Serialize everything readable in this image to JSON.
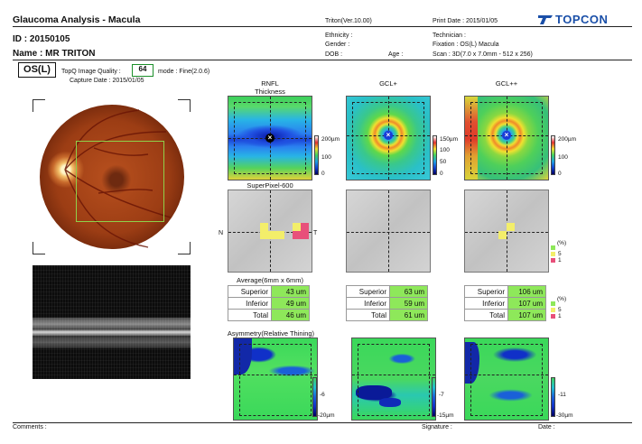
{
  "header": {
    "title": "Glaucoma Analysis - Macula",
    "id_label": "ID : 20150105",
    "name_label": "Name : MR    TRITON",
    "version": "Triton(Ver.10.00)",
    "print_date": "Print Date : 2015/01/05",
    "brand": "TOPCON",
    "ethnicity": "Ethnicity :",
    "gender": "Gender :",
    "dob": "DOB :",
    "age": "Age :",
    "technician": "Technician :",
    "fixation": "Fixation : OS(L) Macula",
    "scan": "Scan : 3D(7.0 x 7.0mm - 512 x 256)"
  },
  "scan_info": {
    "eye": "OS(L)",
    "quality_label": "TopQ Image Quality :",
    "quality_value": "64",
    "mode": "mode : Fine(2.0.6)",
    "capture_date": "Capture Date :  2015/01/05"
  },
  "maps": {
    "rnfl_title": "RNFL",
    "rnfl_subtitle": "Thickness",
    "gcl_title": "GCL+",
    "gclpp_title": "GCL++",
    "rnfl_scale": [
      "200µm",
      "100",
      "0"
    ],
    "gcl_scale": [
      "150µm",
      "100",
      "50",
      "0"
    ],
    "gclpp_scale": [
      "200µm",
      "100",
      "0"
    ]
  },
  "superpixel": {
    "title": "SuperPixel-600",
    "nasal": "N",
    "temporal": "T",
    "legend": [
      "(%)",
      "5",
      "1"
    ]
  },
  "average": {
    "title": "Average(6mm x 6mm)",
    "rnfl": [
      {
        "label": "Superior",
        "value": "43 um"
      },
      {
        "label": "Inferior",
        "value": "49 um"
      },
      {
        "label": "Total",
        "value": "46 um"
      }
    ],
    "gcl": [
      {
        "label": "Superior",
        "value": "63 um"
      },
      {
        "label": "Inferior",
        "value": "59 um"
      },
      {
        "label": "Total",
        "value": "61 um"
      }
    ],
    "gclpp": [
      {
        "label": "Superior",
        "value": "106 um"
      },
      {
        "label": "Inferior",
        "value": "107 um"
      },
      {
        "label": "Total",
        "value": "107 um"
      }
    ],
    "legend": [
      "(%)",
      "5",
      "1"
    ]
  },
  "asymmetry": {
    "title": "Asymmetry(Relative Thining)",
    "rnfl_scale": [
      "-6",
      "-20µm"
    ],
    "gcl_scale": [
      "-7",
      "-15µm"
    ],
    "gclpp_scale": [
      "-11",
      "-30µm"
    ]
  },
  "footer": {
    "comments": "Comments :",
    "signature": "Signature :",
    "date": "Date :"
  },
  "colors": {
    "normal_green": "#8ee85a",
    "borderline_yellow": "#f3ee6a",
    "abnormal_red": "#e8507a",
    "brand_blue": "#1a4fa8"
  }
}
